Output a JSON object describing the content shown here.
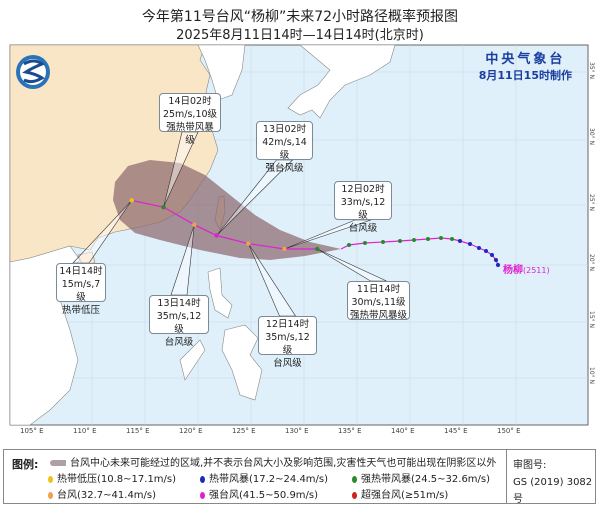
{
  "title": "今年第11号台风“杨柳”未来72小时路径概率预报图",
  "subtitle": "2025年8月11日14时—14日14时(北京时)",
  "agency": {
    "name": "中央气象台",
    "made": "8月11日15时制作"
  },
  "typhoon": {
    "name": "杨柳",
    "code": "(2511)"
  },
  "longitude_labels": [
    "105° E",
    "110° E",
    "115° E",
    "120° E",
    "125° E",
    "130° E",
    "135° E",
    "140° E",
    "145° E",
    "150° E"
  ],
  "latitude_labels": [
    "35° N",
    "30° N",
    "25° N",
    "20° N",
    "15° N",
    "10° N"
  ],
  "forecast_points": [
    {
      "time": "11日14时",
      "wind": "30m/s,11级",
      "grade": "强热带风暴级",
      "lon": 132.1,
      "lat": 20.6,
      "color": "#2a8a2a"
    },
    {
      "time": "12日02时",
      "wind": "33m/s,12级",
      "grade": "台风级",
      "lon": 129.0,
      "lat": 20.6,
      "color": "#f0a050"
    },
    {
      "time": "12日14时",
      "wind": "35m/s,12级",
      "grade": "台风级",
      "lon": 125.6,
      "lat": 21.0,
      "color": "#f0a050"
    },
    {
      "time": "13日02时",
      "wind": "42m/s,14级",
      "grade": "强台风级",
      "lon": 122.6,
      "lat": 21.6,
      "color": "#e020d0"
    },
    {
      "time": "13日14时",
      "wind": "35m/s,12级",
      "grade": "台风级",
      "lon": 120.5,
      "lat": 22.4,
      "color": "#f0a050"
    },
    {
      "time": "14日02时",
      "wind": "25m/s,10级",
      "grade": "强热带风暴级",
      "lon": 117.6,
      "lat": 23.7,
      "color": "#2a8a2a"
    },
    {
      "time": "14日14时",
      "wind": "15m/s,7级",
      "grade": "热带低压",
      "lon": 114.6,
      "lat": 24.2,
      "color": "#f0c020"
    }
  ],
  "legend": {
    "label": "图例:",
    "cone_text": "台风中心未来可能经过的区域,并不表示台风大小及影响范围,灾害性天气也可能出现在阴影区以外",
    "items": [
      {
        "text": "热带低压(10.8~17.1m/s)",
        "color": "#f0c020"
      },
      {
        "text": "热带风暴(17.2~24.4m/s)",
        "color": "#1a2ac0"
      },
      {
        "text": "强热带风暴(24.5~32.6m/s)",
        "color": "#2a8a2a"
      },
      {
        "text": "台风(32.7~41.4m/s)",
        "color": "#f0a050"
      },
      {
        "text": "强台风(41.5~50.9m/s)",
        "color": "#e020d0"
      },
      {
        "text": "超强台风(≥51m/s)",
        "color": "#d02020"
      }
    ],
    "review_label": "审图号:",
    "review_no": "GS (2019) 3082号"
  },
  "colors": {
    "ocean": "#dff0fb",
    "land_china": "#f9e6c6",
    "land_other": "#ffffff",
    "cone": "#8c6a6e",
    "track": "#e020d0"
  }
}
